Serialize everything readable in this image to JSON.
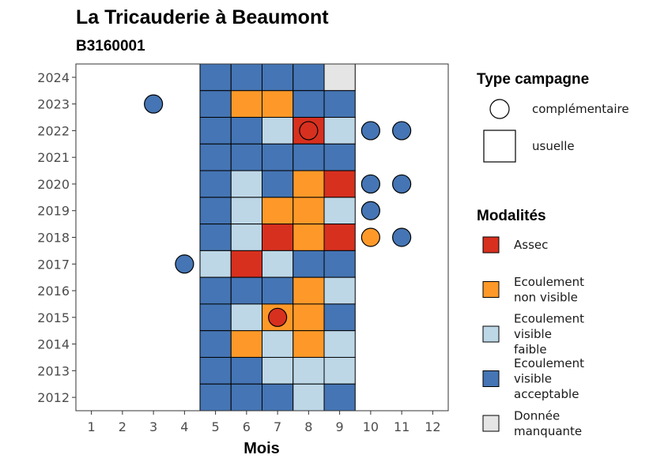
{
  "chart_data": {
    "type": "heatmap",
    "title": "La Tricauderie à Beaumont",
    "subtitle": "B3160001",
    "xlabel": "Mois",
    "ylabel": "",
    "x_ticks": [
      1,
      2,
      3,
      4,
      5,
      6,
      7,
      8,
      9,
      10,
      11,
      12
    ],
    "y_ticks": [
      2012,
      2013,
      2014,
      2015,
      2016,
      2017,
      2018,
      2019,
      2020,
      2021,
      2022,
      2023,
      2024
    ],
    "xlim": [
      0.5,
      12.5
    ],
    "ylim": [
      2011.5,
      2024.5
    ],
    "grid": false,
    "colors": {
      "Assec": "#d7301f",
      "Ecoulement non visible": "#fe9929",
      "Ecoulement visible faible": "#bdd7e7",
      "Ecoulement visible acceptable": "#4575b4",
      "Donnée manquante": "#e5e5e5"
    },
    "usuelle": [
      {
        "year": 2024,
        "values": [
          "Ecoulement visible acceptable",
          "Ecoulement visible acceptable",
          "Ecoulement visible acceptable",
          "Ecoulement visible acceptable",
          "Donnée manquante"
        ]
      },
      {
        "year": 2023,
        "values": [
          "Ecoulement visible acceptable",
          "Ecoulement non visible",
          "Ecoulement non visible",
          "Ecoulement visible acceptable",
          "Ecoulement visible acceptable"
        ]
      },
      {
        "year": 2022,
        "values": [
          "Ecoulement visible acceptable",
          "Ecoulement visible acceptable",
          "Ecoulement visible faible",
          "Assec",
          "Ecoulement visible faible"
        ]
      },
      {
        "year": 2021,
        "values": [
          "Ecoulement visible acceptable",
          "Ecoulement visible acceptable",
          "Ecoulement visible acceptable",
          "Ecoulement visible acceptable",
          "Ecoulement visible acceptable"
        ]
      },
      {
        "year": 2020,
        "values": [
          "Ecoulement visible acceptable",
          "Ecoulement visible faible",
          "Ecoulement visible acceptable",
          "Ecoulement non visible",
          "Assec"
        ]
      },
      {
        "year": 2019,
        "values": [
          "Ecoulement visible acceptable",
          "Ecoulement visible faible",
          "Ecoulement non visible",
          "Ecoulement non visible",
          "Ecoulement visible faible"
        ]
      },
      {
        "year": 2018,
        "values": [
          "Ecoulement visible acceptable",
          "Ecoulement visible faible",
          "Assec",
          "Ecoulement non visible",
          "Assec"
        ]
      },
      {
        "year": 2017,
        "values": [
          "Ecoulement visible faible",
          "Assec",
          "Ecoulement visible faible",
          "Ecoulement visible acceptable",
          "Ecoulement visible acceptable"
        ]
      },
      {
        "year": 2016,
        "values": [
          "Ecoulement visible acceptable",
          "Ecoulement visible acceptable",
          "Ecoulement visible acceptable",
          "Ecoulement non visible",
          "Ecoulement visible faible"
        ]
      },
      {
        "year": 2015,
        "values": [
          "Ecoulement visible acceptable",
          "Ecoulement visible faible",
          "Ecoulement non visible",
          "Ecoulement non visible",
          "Ecoulement visible acceptable"
        ]
      },
      {
        "year": 2014,
        "values": [
          "Ecoulement visible acceptable",
          "Ecoulement non visible",
          "Ecoulement visible faible",
          "Ecoulement non visible",
          "Ecoulement visible faible"
        ]
      },
      {
        "year": 2013,
        "values": [
          "Ecoulement visible acceptable",
          "Ecoulement visible acceptable",
          "Ecoulement visible faible",
          "Ecoulement visible faible",
          "Ecoulement visible faible"
        ]
      },
      {
        "year": 2012,
        "values": [
          "Ecoulement visible acceptable",
          "Ecoulement visible acceptable",
          "Ecoulement visible acceptable",
          "Ecoulement visible faible",
          "Ecoulement visible acceptable"
        ]
      }
    ],
    "usuelle_months": [
      5,
      6,
      7,
      8,
      9
    ],
    "complementaire": [
      {
        "year": 2023,
        "month": 3,
        "value": "Ecoulement visible acceptable"
      },
      {
        "year": 2022,
        "month": 8,
        "value": "Assec"
      },
      {
        "year": 2022,
        "month": 10,
        "value": "Ecoulement visible acceptable"
      },
      {
        "year": 2022,
        "month": 11,
        "value": "Ecoulement visible acceptable"
      },
      {
        "year": 2020,
        "month": 10,
        "value": "Ecoulement visible acceptable"
      },
      {
        "year": 2020,
        "month": 11,
        "value": "Ecoulement visible acceptable"
      },
      {
        "year": 2019,
        "month": 10,
        "value": "Ecoulement visible acceptable"
      },
      {
        "year": 2018,
        "month": 10,
        "value": "Ecoulement non visible"
      },
      {
        "year": 2018,
        "month": 11,
        "value": "Ecoulement visible acceptable"
      },
      {
        "year": 2017,
        "month": 4,
        "value": "Ecoulement visible acceptable"
      },
      {
        "year": 2015,
        "month": 7,
        "value": "Assec"
      }
    ],
    "legend_type": {
      "title": "Type campagne",
      "items": [
        {
          "label": "complémentaire",
          "shape": "circle"
        },
        {
          "label": "usuelle",
          "shape": "square"
        }
      ]
    },
    "legend_modalites": {
      "title": "Modalités",
      "items": [
        {
          "key": "Assec",
          "lines": [
            "Assec"
          ]
        },
        {
          "key": "Ecoulement non visible",
          "lines": [
            "Ecoulement",
            "non visible"
          ]
        },
        {
          "key": "Ecoulement visible faible",
          "lines": [
            "Ecoulement",
            "visible",
            "faible"
          ]
        },
        {
          "key": "Ecoulement visible acceptable",
          "lines": [
            "Ecoulement",
            "visible",
            "acceptable"
          ]
        },
        {
          "key": "Donnée manquante",
          "lines": [
            "Donnée",
            "manquante"
          ]
        }
      ]
    }
  }
}
